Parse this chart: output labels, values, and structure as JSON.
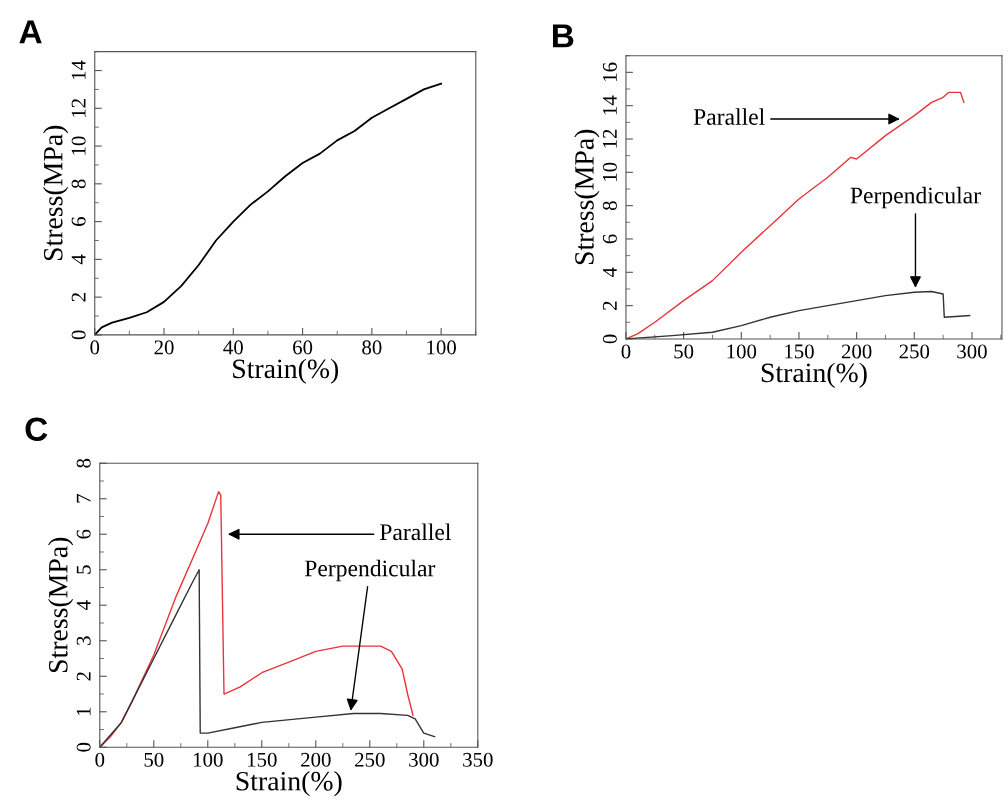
{
  "chart_data": [
    {
      "type": "line",
      "title": "A",
      "xlabel": "Strain(%)",
      "ylabel": "Stress(MPa)",
      "xlim": [
        0,
        110
      ],
      "ylim": [
        0,
        15
      ],
      "xticks": [
        0,
        20,
        40,
        60,
        80,
        100
      ],
      "yticks": [
        0,
        2,
        4,
        6,
        8,
        10,
        12,
        14
      ],
      "series": [
        {
          "color": "#000000",
          "x": [
            0,
            2,
            5,
            10,
            15,
            20,
            25,
            30,
            35,
            40,
            45,
            50,
            55,
            60,
            65,
            70,
            75,
            80,
            85,
            90,
            95,
            100
          ],
          "values": [
            0,
            0.4,
            0.65,
            0.9,
            1.2,
            1.75,
            2.6,
            3.7,
            5.0,
            6.0,
            6.9,
            7.6,
            8.4,
            9.1,
            9.6,
            10.3,
            10.8,
            11.5,
            12.0,
            12.5,
            13.0,
            13.3
          ]
        }
      ]
    },
    {
      "type": "line",
      "title": "B",
      "xlabel": "Strain(%)",
      "ylabel": "Stress(MPa)",
      "xlim": [
        0,
        326
      ],
      "ylim": [
        0,
        17
      ],
      "xticks": [
        0,
        50,
        100,
        150,
        200,
        250,
        300
      ],
      "yticks": [
        0,
        2,
        4,
        6,
        8,
        10,
        12,
        14,
        16
      ],
      "series": [
        {
          "color": "#e8343c",
          "x": [
            0,
            10,
            25,
            50,
            75,
            100,
            125,
            150,
            175,
            195,
            200,
            225,
            250,
            265,
            275,
            280,
            290,
            293
          ],
          "values": [
            0,
            0.3,
            1.0,
            2.3,
            3.5,
            5.2,
            6.8,
            8.4,
            9.7,
            10.9,
            10.8,
            12.2,
            13.4,
            14.2,
            14.5,
            14.8,
            14.8,
            14.2
          ]
        },
        {
          "color": "#333333",
          "x": [
            0,
            40,
            75,
            100,
            125,
            150,
            175,
            200,
            225,
            250,
            265,
            275,
            276,
            298
          ],
          "values": [
            0,
            0.2,
            0.4,
            0.8,
            1.3,
            1.7,
            2.0,
            2.3,
            2.6,
            2.8,
            2.85,
            2.7,
            1.3,
            1.4
          ]
        }
      ],
      "annotations": [
        {
          "text": "Parallel",
          "x": 240,
          "y": 13.2
        },
        {
          "text": "Perpendicular",
          "x": 251,
          "y": 2.9
        }
      ]
    },
    {
      "type": "line",
      "title": "C",
      "xlabel": "Strain(%)",
      "ylabel": "Stress(MPa)",
      "xlim": [
        0,
        350
      ],
      "ylim": [
        0,
        8
      ],
      "xticks": [
        0,
        50,
        100,
        150,
        200,
        250,
        300,
        350
      ],
      "yticks": [
        0,
        1,
        2,
        3,
        4,
        5,
        6,
        7,
        8
      ],
      "series": [
        {
          "color": "#e8343c",
          "x": [
            0,
            10,
            20,
            30,
            50,
            70,
            90,
            100,
            110,
            112,
            115,
            130,
            150,
            175,
            200,
            225,
            260,
            270,
            280,
            285,
            290
          ],
          "values": [
            0,
            0.3,
            0.7,
            1.3,
            2.6,
            4.2,
            5.6,
            6.3,
            7.2,
            7.1,
            1.5,
            1.7,
            2.1,
            2.4,
            2.7,
            2.85,
            2.85,
            2.7,
            2.2,
            1.5,
            0.9
          ]
        },
        {
          "color": "#333333",
          "x": [
            0,
            20,
            30,
            50,
            70,
            85,
            92,
            93,
            100,
            125,
            150,
            200,
            235,
            260,
            285,
            292,
            300,
            310
          ],
          "values": [
            0,
            0.7,
            1.3,
            2.5,
            3.7,
            4.6,
            5.0,
            0.4,
            0.4,
            0.55,
            0.7,
            0.85,
            0.95,
            0.95,
            0.9,
            0.8,
            0.4,
            0.3
          ]
        }
      ],
      "annotations": [
        {
          "text": "Parallel",
          "x": 116,
          "y": 6.0
        },
        {
          "text": "Perpendicular",
          "x": 232,
          "y": 0.95
        }
      ]
    }
  ]
}
